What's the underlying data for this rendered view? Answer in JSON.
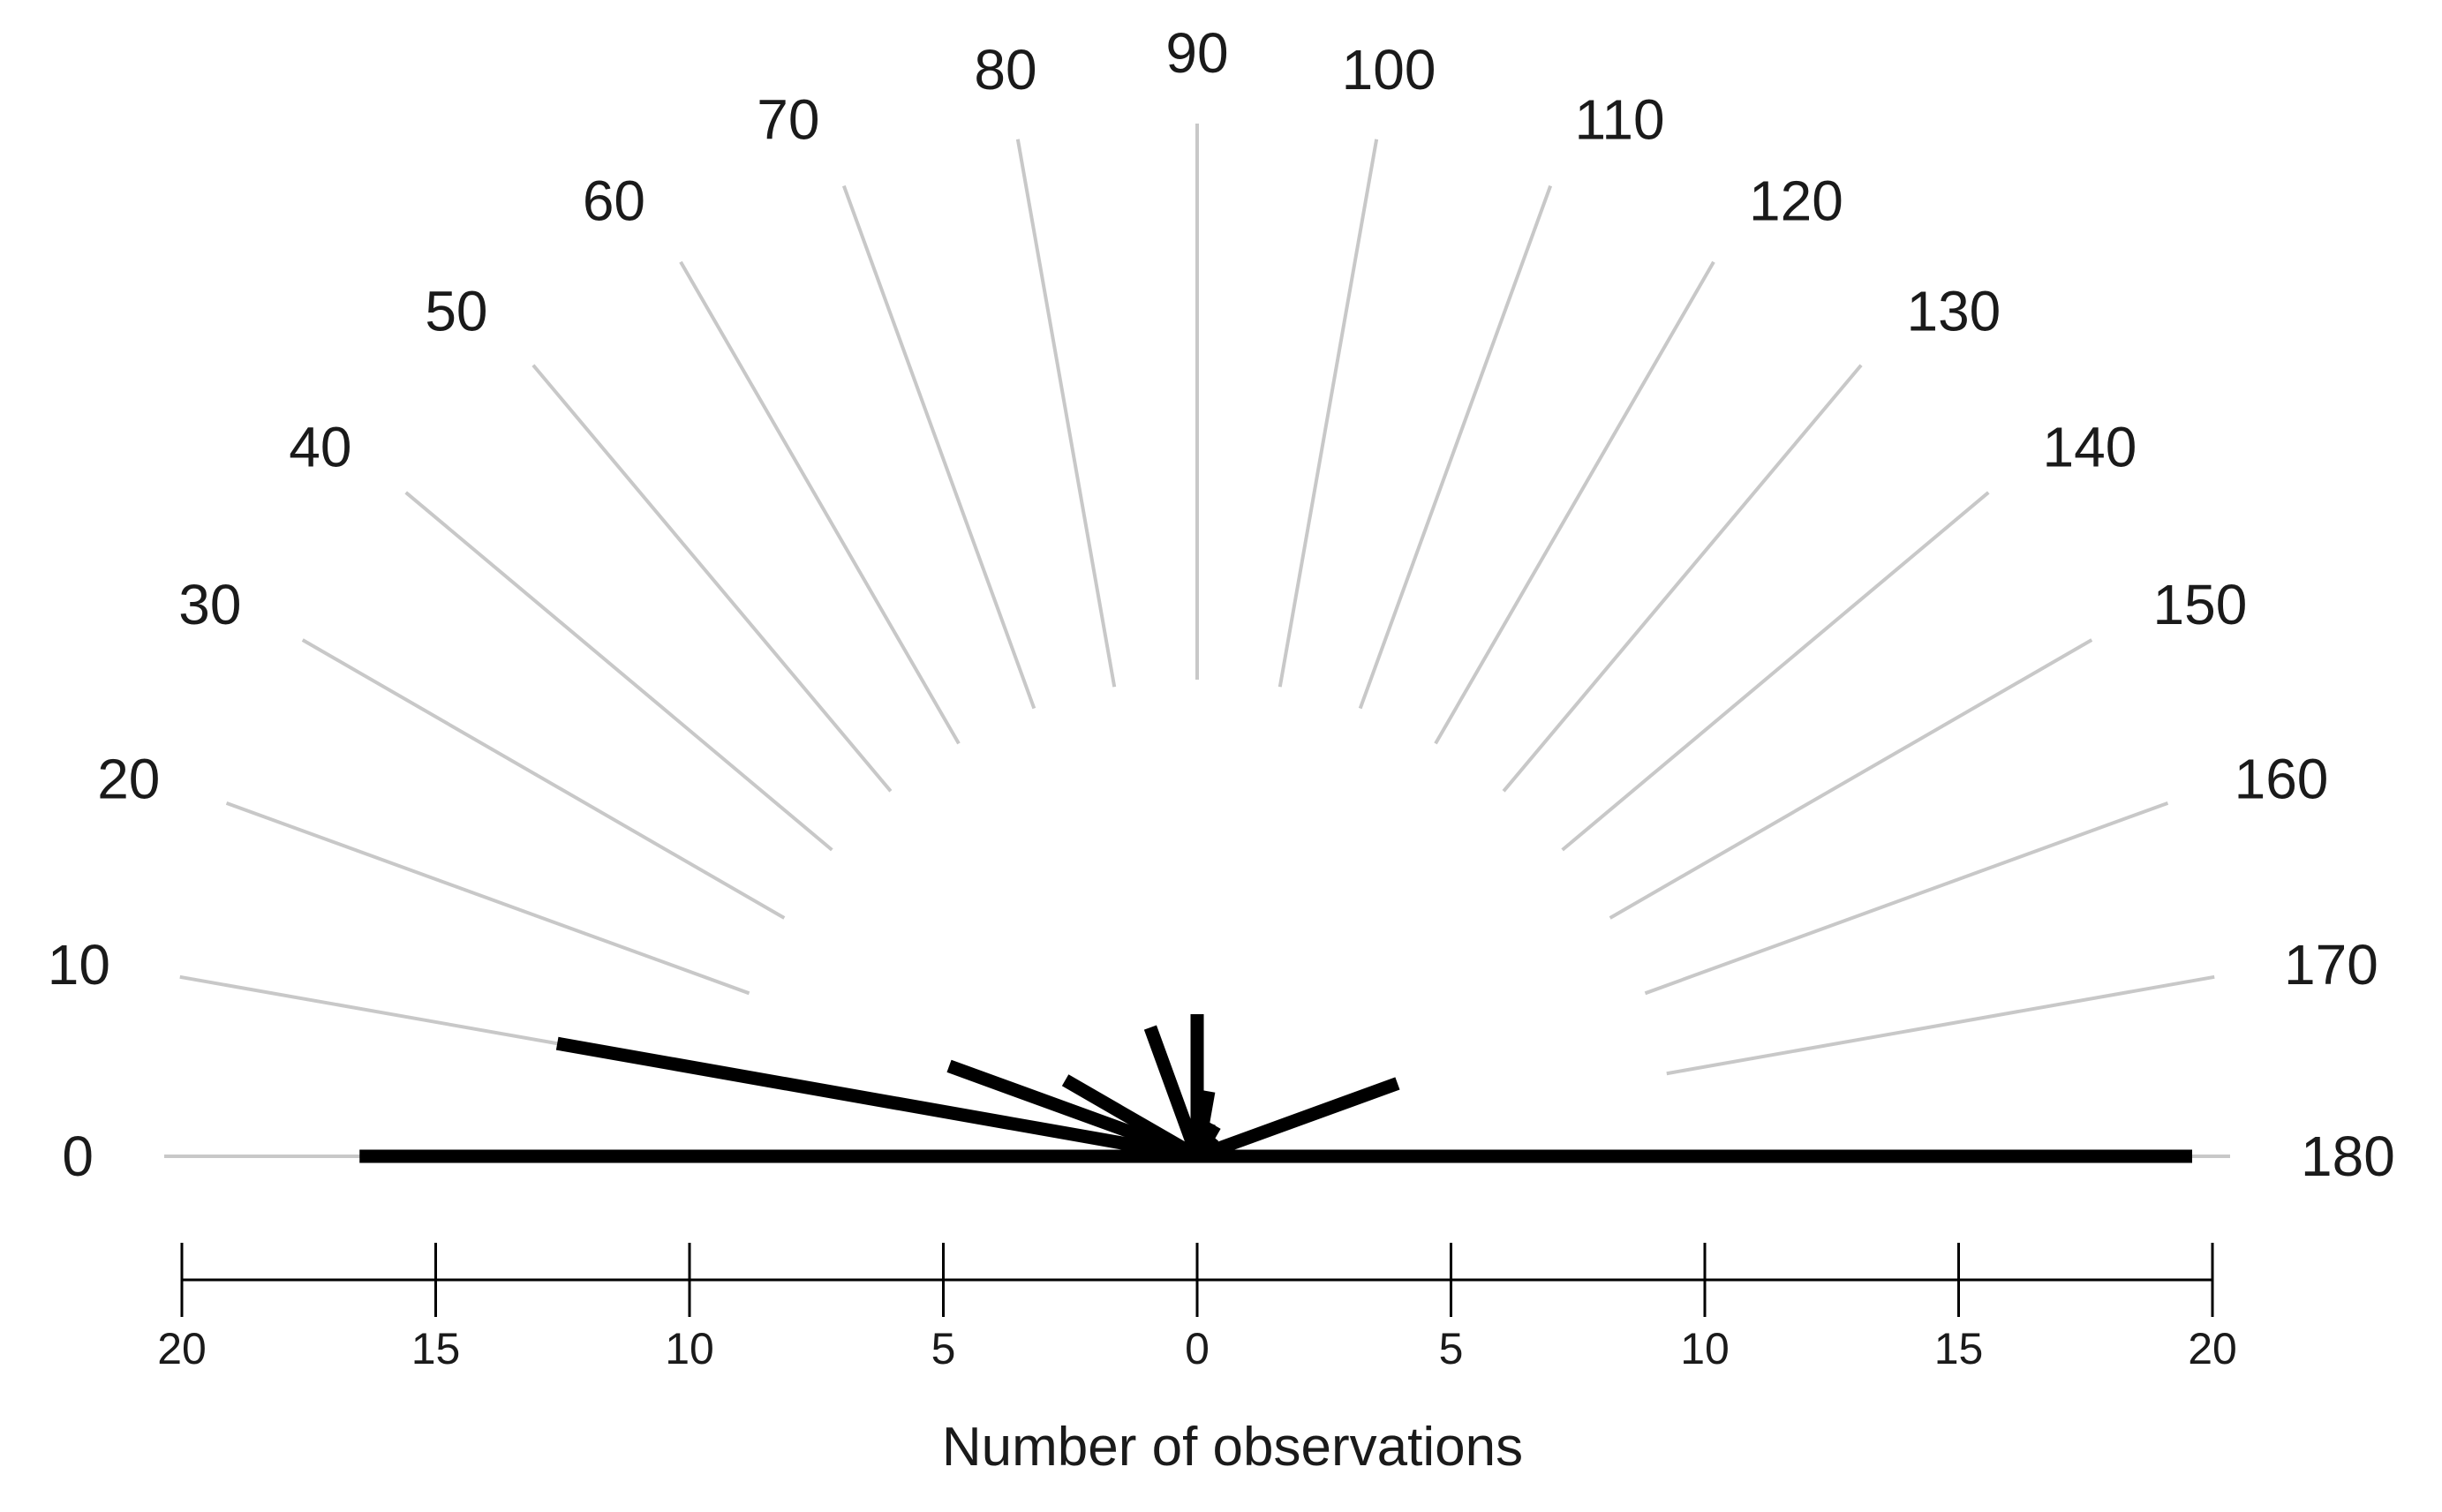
{
  "chart_data": {
    "type": "rose",
    "xlabel": "Number of observations",
    "angle_tick_labels": [
      "0",
      "10",
      "20",
      "30",
      "40",
      "50",
      "60",
      "70",
      "80",
      "90",
      "100",
      "110",
      "120",
      "130",
      "140",
      "150",
      "160",
      "170",
      "180"
    ],
    "axis_tick_labels": [
      "20",
      "15",
      "10",
      "5",
      "0",
      "5",
      "10",
      "15",
      "20"
    ],
    "axis_range": [
      0,
      20
    ],
    "grid": true,
    "grid_color": "#c8c8c8",
    "bar_color": "#000000",
    "series": [
      {
        "angles": [
          0,
          10,
          20,
          30,
          70,
          80,
          90,
          100,
          110,
          120,
          130,
          160,
          180
        ],
        "values": [
          16.5,
          12.8,
          5.2,
          3.0,
          2.7,
          0.2,
          2.8,
          1.3,
          0.7,
          0.7,
          0.5,
          4.2,
          19.6
        ]
      }
    ]
  }
}
